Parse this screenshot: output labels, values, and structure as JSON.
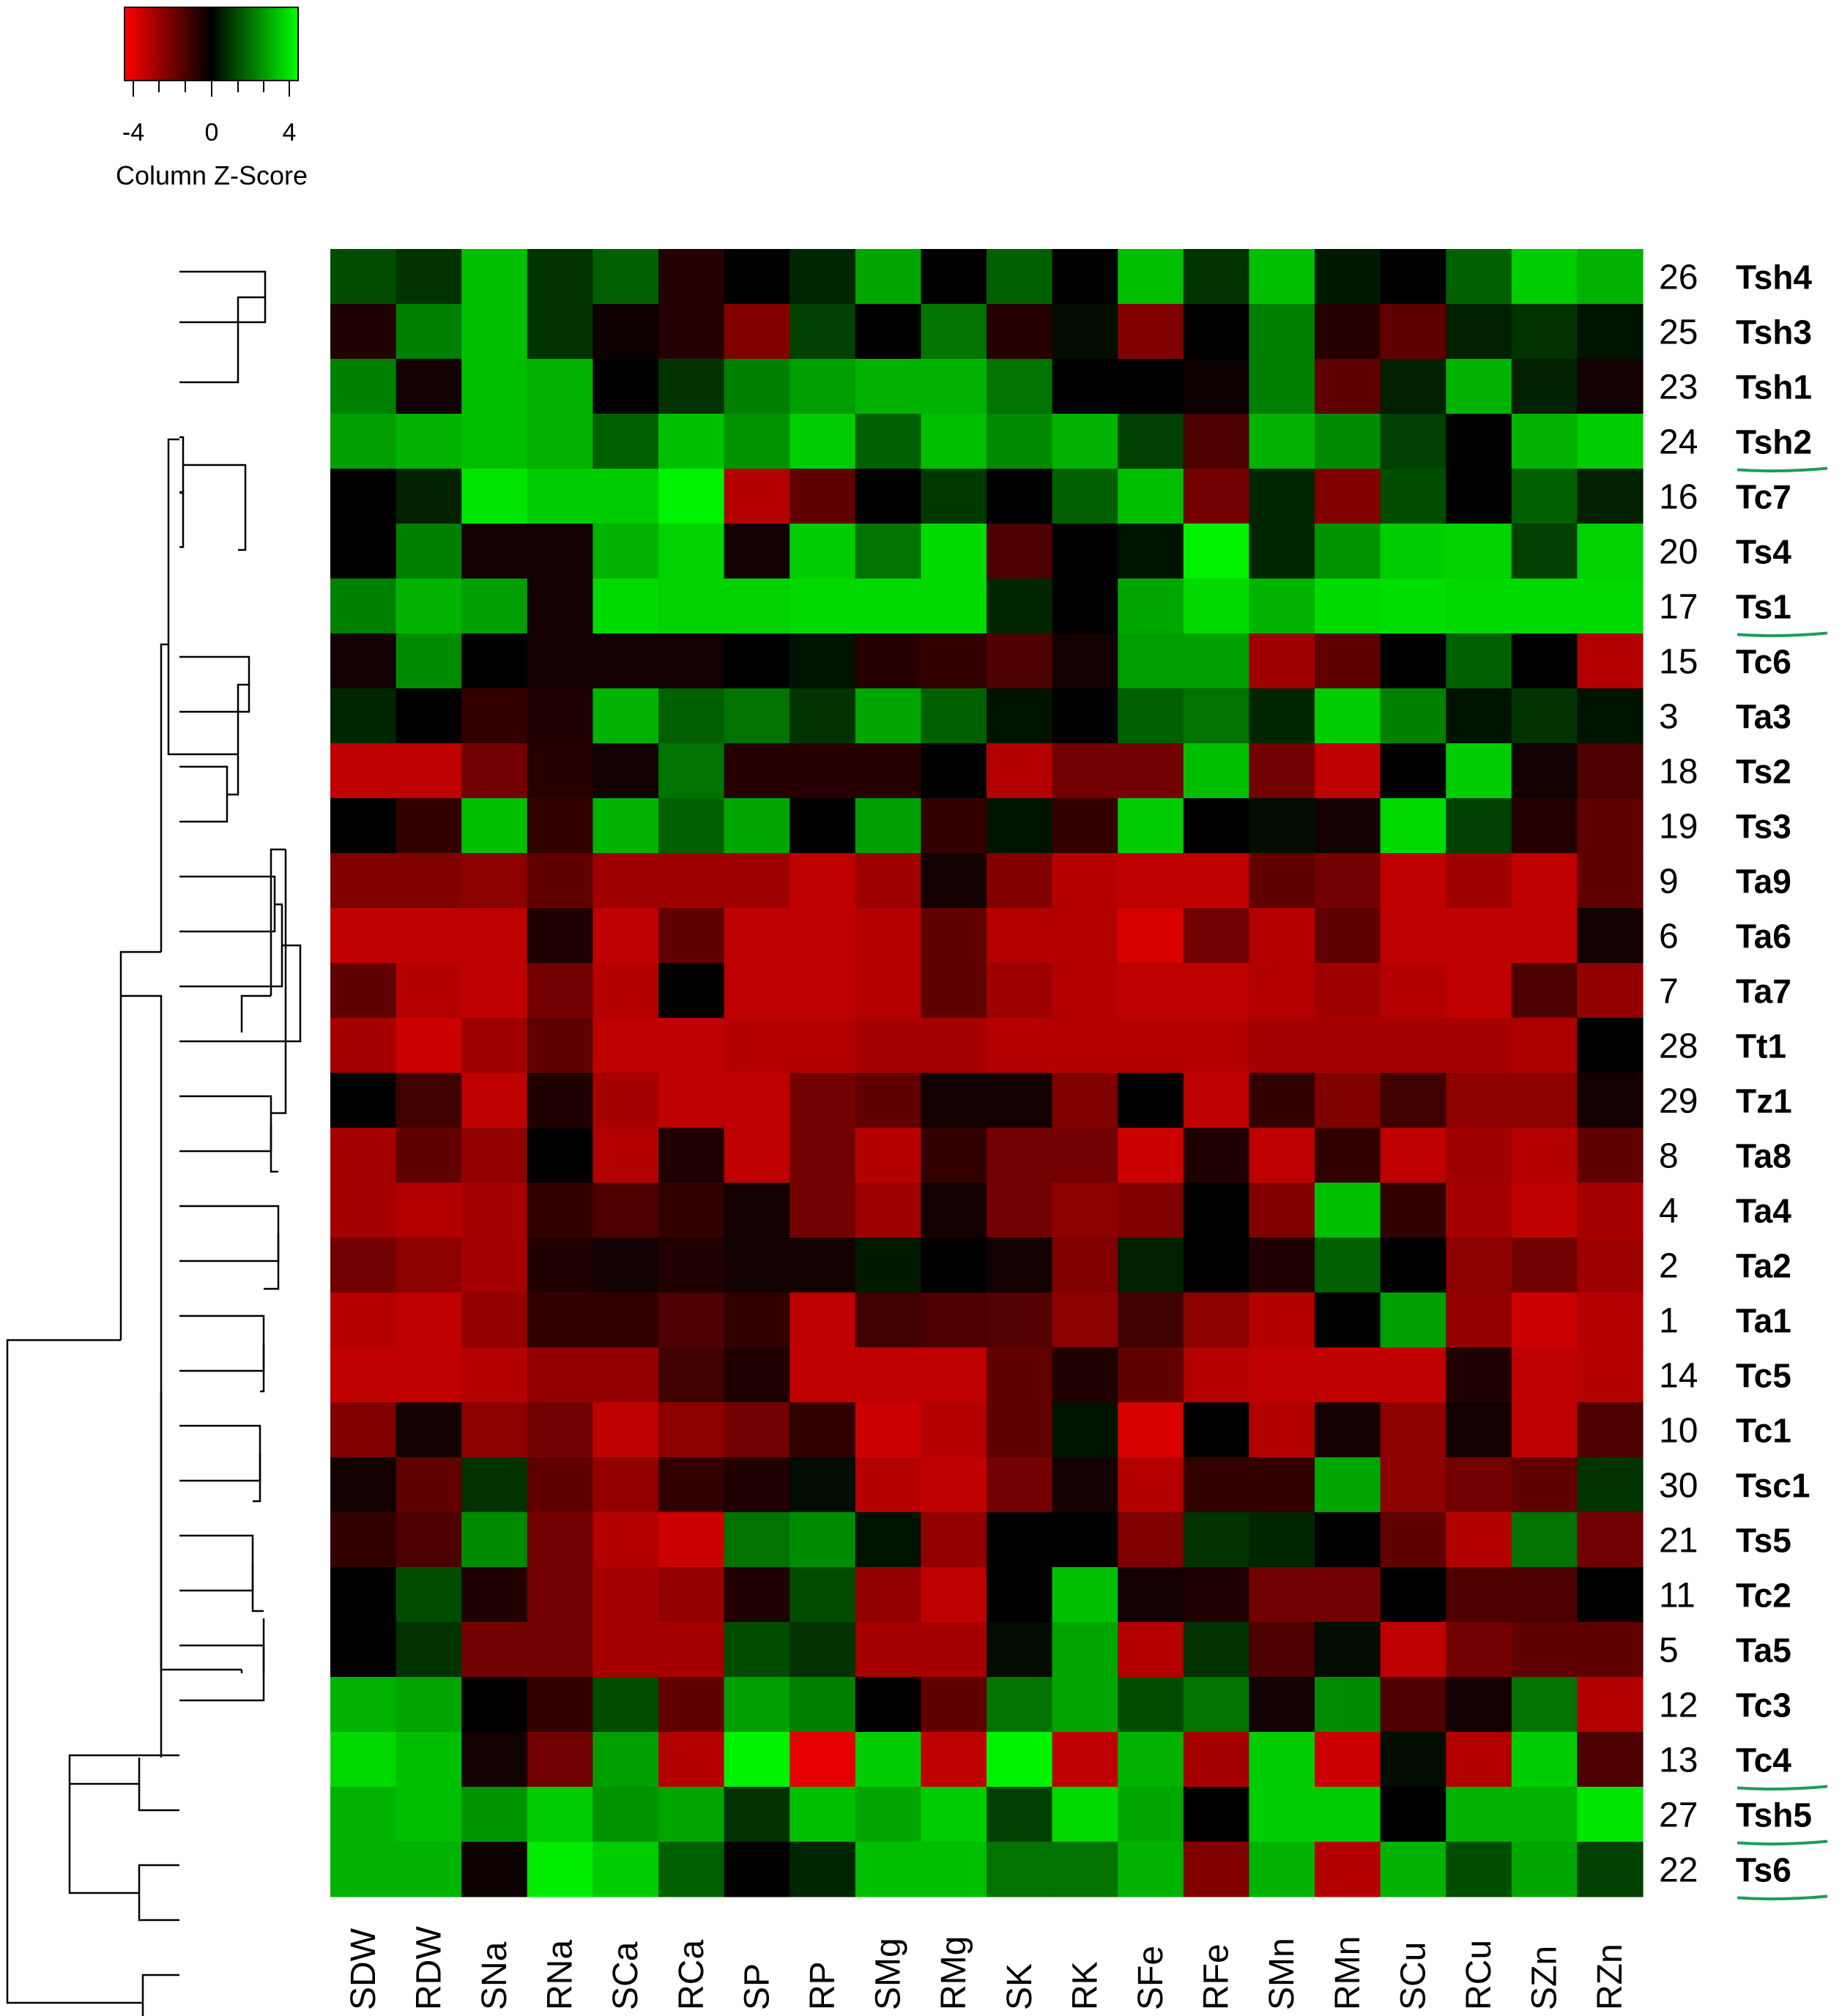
{
  "chart_data": {
    "type": "heatmap",
    "color_key": {
      "title": "Column Z-Score",
      "ticks": [
        "-4",
        "0",
        "4"
      ],
      "low_color": "#ff0000",
      "mid_color": "#000000",
      "high_color": "#00ff00"
    },
    "columns": [
      "SDW",
      "RDW",
      "SNa",
      "RNa",
      "SCa",
      "RCa",
      "SP",
      "RP",
      "SMg",
      "RMg",
      "SK",
      "RK",
      "SFe",
      "RFe",
      "SMn",
      "RMn",
      "SCu",
      "RCu",
      "SZn",
      "RZn"
    ],
    "rows": [
      {
        "num": "26",
        "name": "Tsh4",
        "underline": false,
        "values": [
          1.2,
          0.8,
          3.0,
          0.8,
          1.5,
          -0.6,
          0,
          0.6,
          2.6,
          0,
          1.5,
          0,
          3.0,
          0.8,
          3.0,
          0.4,
          0,
          1.5,
          3.2,
          2.8
        ]
      },
      {
        "num": "25",
        "name": "Tsh3",
        "underline": false,
        "values": [
          -0.5,
          2.0,
          3.0,
          0.8,
          -0.2,
          -0.6,
          -2.0,
          1.0,
          0,
          1.8,
          -0.6,
          0.2,
          -2.0,
          0,
          2.0,
          -0.6,
          -1.5,
          0.5,
          0.8,
          0.3
        ]
      },
      {
        "num": "23",
        "name": "Tsh1",
        "underline": false,
        "values": [
          2.0,
          -0.3,
          3.0,
          2.8,
          0,
          0.8,
          2.0,
          2.5,
          2.8,
          2.8,
          1.8,
          0,
          0,
          -0.2,
          2.0,
          -1.5,
          0.5,
          2.8,
          0.5,
          -0.3
        ]
      },
      {
        "num": "24",
        "name": "Tsh2",
        "underline": true,
        "values": [
          2.5,
          2.8,
          3.0,
          2.8,
          1.5,
          3.0,
          2.3,
          3.2,
          1.5,
          3.0,
          2.2,
          2.8,
          1.0,
          -1.2,
          2.8,
          2.2,
          1.0,
          0,
          2.8,
          3.2
        ]
      },
      {
        "num": "16",
        "name": "Tc7",
        "underline": false,
        "values": [
          0,
          0.5,
          3.6,
          3.2,
          3.2,
          3.8,
          -2.8,
          -1.5,
          0,
          0.9,
          0,
          1.5,
          3.0,
          -1.8,
          0.6,
          -2.0,
          1.2,
          0,
          1.5,
          0.5
        ]
      },
      {
        "num": "20",
        "name": "Ts4",
        "underline": false,
        "values": [
          0,
          2.0,
          -0.3,
          -0.3,
          2.8,
          3.3,
          -0.3,
          3.2,
          1.8,
          3.4,
          -1.2,
          0,
          0.3,
          3.8,
          0.6,
          2.3,
          3.2,
          3.3,
          1.0,
          3.3
        ]
      },
      {
        "num": "17",
        "name": "Ts1",
        "underline": true,
        "values": [
          2.0,
          2.8,
          2.5,
          -0.3,
          3.4,
          3.3,
          3.3,
          3.4,
          3.4,
          3.4,
          0.6,
          0,
          2.6,
          3.4,
          2.8,
          3.4,
          3.5,
          3.4,
          3.4,
          3.4
        ]
      },
      {
        "num": "15",
        "name": "Tc6",
        "underline": false,
        "values": [
          -0.3,
          2.2,
          0,
          -0.3,
          -0.3,
          -0.3,
          0,
          0.3,
          -0.6,
          -0.8,
          -1.2,
          -0.3,
          2.5,
          2.5,
          -2.5,
          -1.5,
          0,
          1.5,
          0,
          -2.8
        ]
      },
      {
        "num": "3",
        "name": "Ta3",
        "underline": false,
        "values": [
          0.6,
          0,
          -0.8,
          -0.5,
          2.8,
          1.5,
          1.8,
          0.8,
          2.6,
          1.5,
          0.3,
          0,
          1.5,
          1.8,
          0.6,
          3.2,
          2.0,
          0.3,
          0.8,
          0.3
        ]
      },
      {
        "num": "18",
        "name": "Ts2",
        "underline": false,
        "values": [
          -3.0,
          -3.0,
          -1.8,
          -0.6,
          -0.3,
          1.8,
          -0.6,
          -0.6,
          -0.6,
          0,
          -2.8,
          -1.8,
          -1.8,
          3.0,
          -1.8,
          -3.0,
          0,
          3.2,
          -0.3,
          -1.2
        ]
      },
      {
        "num": "19",
        "name": "Ts3",
        "underline": false,
        "values": [
          0,
          -0.8,
          3.0,
          -0.8,
          2.8,
          1.5,
          2.6,
          0,
          2.5,
          -0.8,
          0.3,
          -0.8,
          3.2,
          0,
          0.2,
          -0.3,
          3.4,
          1.0,
          -0.6,
          -1.5
        ]
      },
      {
        "num": "9",
        "name": "Ta9",
        "underline": false,
        "values": [
          -2.0,
          -2.0,
          -2.2,
          -1.5,
          -2.5,
          -2.5,
          -2.5,
          -3.0,
          -2.5,
          -0.3,
          -2.0,
          -2.8,
          -3.0,
          -3.0,
          -1.5,
          -1.8,
          -3.0,
          -2.5,
          -3.0,
          -1.5
        ]
      },
      {
        "num": "6",
        "name": "Ta6",
        "underline": false,
        "values": [
          -3.0,
          -3.0,
          -3.0,
          -0.5,
          -3.0,
          -1.5,
          -3.0,
          -3.0,
          -2.8,
          -1.5,
          -2.8,
          -2.8,
          -3.4,
          -1.8,
          -2.8,
          -1.5,
          -3.0,
          -3.0,
          -3.0,
          -0.3
        ]
      },
      {
        "num": "7",
        "name": "Ta7",
        "underline": false,
        "values": [
          -1.5,
          -2.8,
          -3.0,
          -1.8,
          -2.8,
          0,
          -3.0,
          -3.0,
          -2.8,
          -1.5,
          -2.5,
          -2.8,
          -3.0,
          -3.0,
          -2.8,
          -2.5,
          -2.8,
          -3.0,
          -1.2,
          -2.3
        ]
      },
      {
        "num": "28",
        "name": "Tt1",
        "underline": false,
        "values": [
          -2.6,
          -3.2,
          -2.5,
          -1.5,
          -3.0,
          -3.0,
          -2.8,
          -2.8,
          -2.6,
          -2.6,
          -2.8,
          -2.8,
          -2.8,
          -2.8,
          -2.6,
          -2.6,
          -2.6,
          -2.6,
          -2.7,
          0
        ]
      },
      {
        "num": "29",
        "name": "Tz1",
        "underline": false,
        "values": [
          0,
          -1.0,
          -3.0,
          -0.5,
          -2.6,
          -3.0,
          -3.0,
          -1.8,
          -1.5,
          -0.3,
          -0.3,
          -2.0,
          0,
          -3.0,
          -0.8,
          -2.0,
          -1.0,
          -2.2,
          -2.2,
          -0.3
        ]
      },
      {
        "num": "8",
        "name": "Ta8",
        "underline": false,
        "values": [
          -2.6,
          -1.5,
          -2.3,
          0,
          -2.8,
          -0.5,
          -3.0,
          -1.8,
          -2.8,
          -0.8,
          -1.8,
          -1.8,
          -3.2,
          -0.5,
          -3.0,
          -0.8,
          -3.0,
          -2.5,
          -2.8,
          -1.5
        ]
      },
      {
        "num": "4",
        "name": "Ta4",
        "underline": false,
        "values": [
          -2.6,
          -2.8,
          -2.6,
          -0.8,
          -1.2,
          -0.8,
          -0.3,
          -1.8,
          -2.5,
          -0.3,
          -1.8,
          -2.2,
          -2.0,
          0,
          -2.0,
          3.0,
          -0.8,
          -2.6,
          -3.0,
          -2.6
        ]
      },
      {
        "num": "2",
        "name": "Ta2",
        "underline": false,
        "values": [
          -1.8,
          -2.2,
          -2.6,
          -0.5,
          -0.3,
          -0.5,
          -0.3,
          -0.3,
          0.4,
          0,
          -0.3,
          -2.0,
          0.5,
          0,
          -0.5,
          1.5,
          0,
          -2.2,
          -1.8,
          -2.5
        ]
      },
      {
        "num": "1",
        "name": "Ta1",
        "underline": false,
        "values": [
          -2.8,
          -3.0,
          -2.3,
          -0.8,
          -0.8,
          -1.2,
          -0.8,
          -3.0,
          -1.0,
          -1.2,
          -1.3,
          -2.2,
          -1.0,
          -2.2,
          -2.8,
          0,
          2.5,
          -2.3,
          -3.2,
          -2.8
        ]
      },
      {
        "num": "14",
        "name": "Tc5",
        "underline": false,
        "values": [
          -3.0,
          -3.0,
          -2.8,
          -2.3,
          -2.3,
          -1.0,
          -0.5,
          -3.0,
          -3.0,
          -3.0,
          -1.5,
          -0.5,
          -1.5,
          -2.8,
          -3.0,
          -3.0,
          -3.0,
          -0.5,
          -3.0,
          -2.8
        ]
      },
      {
        "num": "10",
        "name": "Tc1",
        "underline": false,
        "values": [
          -2.0,
          -0.3,
          -2.2,
          -1.8,
          -3.0,
          -2.2,
          -1.8,
          -0.8,
          -3.2,
          -2.8,
          -1.5,
          0.3,
          -3.4,
          0,
          -2.8,
          -0.3,
          -2.2,
          -0.3,
          -3.0,
          -1.2
        ]
      },
      {
        "num": "30",
        "name": "Tsc1",
        "underline": false,
        "values": [
          -0.3,
          -1.5,
          0.8,
          -1.5,
          -2.3,
          -0.8,
          -0.5,
          0.2,
          -2.8,
          -3.0,
          -1.8,
          -0.3,
          -2.8,
          -0.8,
          -0.8,
          2.6,
          -2.2,
          -1.8,
          -1.5,
          0.8
        ]
      },
      {
        "num": "21",
        "name": "Ts5",
        "underline": false,
        "values": [
          -0.8,
          -1.2,
          2.2,
          -1.8,
          -2.8,
          -3.2,
          1.8,
          2.2,
          0.3,
          -2.3,
          0,
          0,
          -2.0,
          0.8,
          0.6,
          0,
          -1.5,
          -2.8,
          1.8,
          -1.8
        ]
      },
      {
        "num": "11",
        "name": "Tc2",
        "underline": false,
        "values": [
          0,
          1.2,
          -0.5,
          -1.8,
          -2.6,
          -2.3,
          -0.5,
          1.2,
          -2.3,
          -3.0,
          0,
          3.0,
          -0.3,
          -0.5,
          -1.8,
          -1.8,
          0,
          -1.2,
          -1.2,
          0
        ]
      },
      {
        "num": "5",
        "name": "Ta5",
        "underline": false,
        "values": [
          0,
          0.8,
          -1.8,
          -1.8,
          -2.6,
          -2.6,
          1.2,
          0.8,
          -2.6,
          -2.6,
          0.2,
          2.6,
          -2.8,
          0.8,
          -1.2,
          0.2,
          -3.0,
          -1.8,
          -1.5,
          -1.5
        ]
      },
      {
        "num": "12",
        "name": "Tc3",
        "underline": false,
        "values": [
          2.8,
          2.6,
          0,
          -0.8,
          1.2,
          -1.5,
          2.5,
          2.0,
          0,
          -1.5,
          1.8,
          2.6,
          1.2,
          1.8,
          -0.3,
          2.2,
          -1.2,
          -0.3,
          1.8,
          -2.8
        ]
      },
      {
        "num": "13",
        "name": "Tc4",
        "underline": true,
        "values": [
          3.4,
          3.0,
          -0.3,
          -1.8,
          2.5,
          -2.8,
          3.8,
          -3.6,
          3.2,
          -3.0,
          3.8,
          -3.0,
          2.8,
          -2.6,
          3.2,
          -3.2,
          0.2,
          -2.8,
          3.2,
          -1.2
        ]
      },
      {
        "num": "27",
        "name": "Tsh5",
        "underline": true,
        "values": [
          2.8,
          3.0,
          2.3,
          3.2,
          2.3,
          2.6,
          0.8,
          3.0,
          2.6,
          3.2,
          1.0,
          3.4,
          2.6,
          0,
          3.2,
          3.2,
          0,
          2.8,
          2.8,
          3.6
        ]
      },
      {
        "num": "22",
        "name": "Ts6",
        "underline": true,
        "values": [
          2.8,
          2.8,
          -0.2,
          3.7,
          3.2,
          1.5,
          0,
          0.6,
          3.0,
          3.0,
          1.8,
          1.8,
          2.8,
          -2.0,
          2.8,
          -2.8,
          2.8,
          1.2,
          2.6,
          1.0
        ]
      }
    ]
  }
}
